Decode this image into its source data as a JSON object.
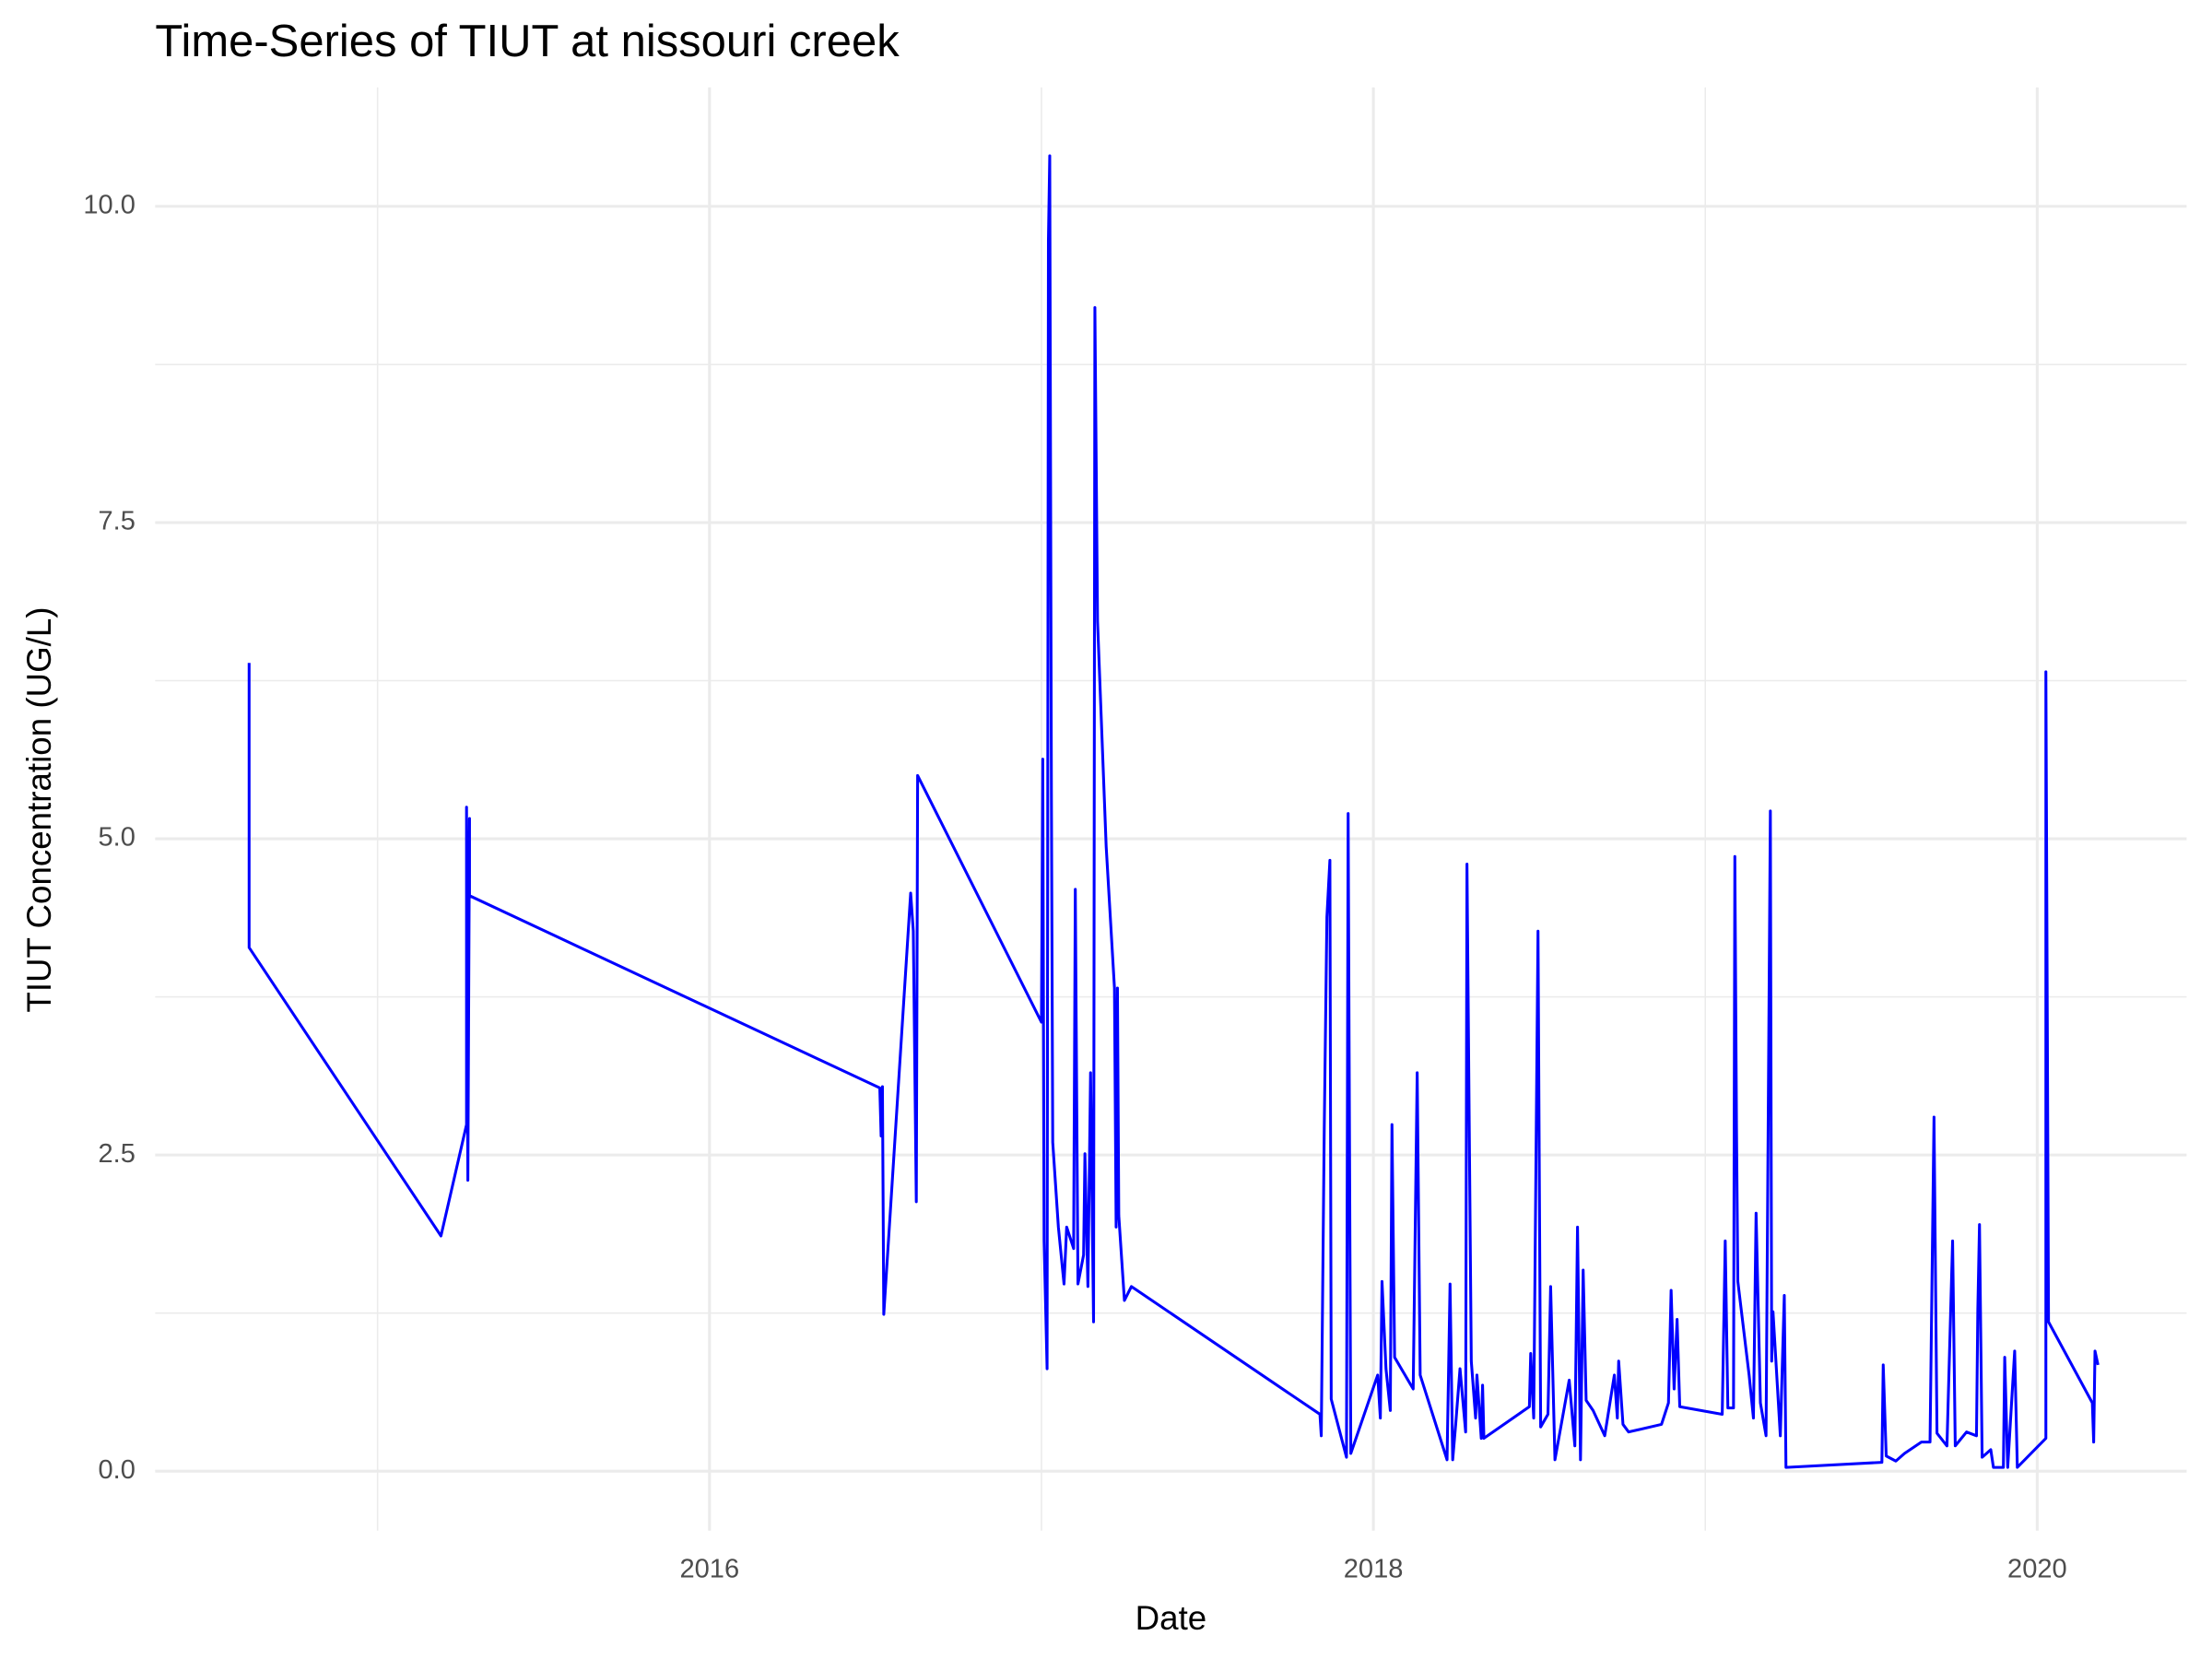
{
  "chart_data": {
    "type": "line",
    "title": "Time-Series of TIUT at nissouri creek",
    "x_label": "Date",
    "y_label": "TIUT Concentration (UG/L)",
    "color": "#0000ff",
    "grid": true,
    "xlim": [
      2014.33,
      2020.45
    ],
    "xticks": [
      2016,
      2018,
      2020
    ],
    "x_minor_ticks": [
      2015,
      2017,
      2019
    ],
    "ylim": [
      -0.47,
      10.94
    ],
    "yticks": [
      {
        "value": 0,
        "label": "0.0"
      },
      2.5,
      {
        "value": 5,
        "label": "5.0"
      },
      7.5,
      {
        "value": 10,
        "label": "10.0"
      }
    ],
    "y_minor_ticks": [
      1.25,
      3.75,
      6.25,
      8.75
    ],
    "x": [
      2014.613,
      2014.613,
      2015.191,
      2015.268,
      2015.268,
      2015.272,
      2015.277,
      2015.277,
      2016.513,
      2016.517,
      2016.521,
      2016.525,
      2016.606,
      2016.614,
      2016.623,
      2016.627,
      2017.0,
      2017.004,
      2017.008,
      2017.017,
      2017.021,
      2017.025,
      2017.03,
      2017.034,
      2017.051,
      2017.068,
      2017.076,
      2017.097,
      2017.102,
      2017.11,
      2017.127,
      2017.131,
      2017.14,
      2017.148,
      2017.157,
      2017.161,
      2017.169,
      2017.195,
      2017.22,
      2017.225,
      2017.229,
      2017.233,
      2017.25,
      2017.271,
      2017.839,
      2017.843,
      2017.852,
      2017.86,
      2017.869,
      2017.873,
      2017.919,
      2017.924,
      2017.932,
      2018.013,
      2018.021,
      2018.026,
      2018.038,
      2018.051,
      2018.056,
      2018.064,
      2018.12,
      2018.132,
      2018.141,
      2018.222,
      2018.231,
      2018.239,
      2018.248,
      2018.261,
      2018.278,
      2018.282,
      2018.295,
      2018.308,
      2018.312,
      2018.325,
      2018.329,
      2018.333,
      2018.47,
      2018.474,
      2018.483,
      2018.496,
      2018.504,
      2018.526,
      2018.534,
      2018.547,
      2018.59,
      2018.607,
      2018.615,
      2018.624,
      2018.632,
      2018.641,
      2018.662,
      2018.697,
      2018.726,
      2018.735,
      2018.739,
      2018.752,
      2018.769,
      2018.868,
      2018.889,
      2018.897,
      2018.906,
      2018.915,
      2018.923,
      2019.051,
      2019.06,
      2019.068,
      2019.085,
      2019.089,
      2019.094,
      2019.098,
      2019.132,
      2019.145,
      2019.153,
      2019.166,
      2019.183,
      2019.187,
      2019.196,
      2019.2,
      2019.204,
      2019.226,
      2019.238,
      2019.243,
      2019.532,
      2019.536,
      2019.545,
      2019.574,
      2019.6,
      2019.651,
      2019.677,
      2019.689,
      2019.698,
      2019.728,
      2019.745,
      2019.753,
      2019.787,
      2019.817,
      2019.821,
      2019.826,
      2019.834,
      2019.86,
      2019.868,
      2019.898,
      2019.902,
      2019.911,
      2019.932,
      2019.94,
      2020.026,
      2020.026,
      2020.034,
      2020.166,
      2020.17,
      2020.174,
      2020.183
    ],
    "values": [
      6.39,
      4.14,
      1.86,
      2.74,
      5.25,
      2.3,
      5.16,
      4.55,
      3.03,
      2.65,
      3.04,
      1.24,
      4.57,
      4.27,
      2.13,
      5.5,
      3.55,
      5.63,
      1.82,
      0.81,
      9.73,
      10.4,
      5.38,
      2.6,
      1.93,
      1.48,
      1.93,
      1.76,
      4.6,
      1.48,
      1.71,
      2.51,
      1.46,
      3.15,
      1.18,
      9.2,
      6.72,
      4.94,
      3.82,
      1.93,
      3.82,
      2.02,
      1.35,
      1.46,
      0.45,
      0.28,
      2.71,
      4.38,
      4.83,
      0.57,
      0.11,
      5.2,
      0.14,
      0.76,
      0.42,
      1.5,
      0.81,
      0.48,
      2.74,
      0.9,
      0.65,
      3.15,
      0.76,
      0.09,
      1.48,
      0.09,
      0.37,
      0.81,
      0.31,
      4.8,
      0.87,
      0.42,
      0.76,
      0.26,
      0.68,
      0.26,
      0.51,
      0.93,
      0.42,
      4.27,
      0.35,
      0.45,
      1.46,
      0.09,
      0.72,
      0.2,
      1.93,
      0.09,
      1.59,
      0.56,
      0.48,
      0.28,
      0.76,
      0.42,
      0.87,
      0.37,
      0.31,
      0.37,
      0.54,
      1.43,
      0.65,
      1.2,
      0.51,
      0.45,
      1.82,
      0.5,
      0.5,
      4.86,
      2.71,
      1.5,
      0.76,
      0.42,
      2.04,
      0.54,
      0.28,
      1.82,
      5.22,
      0.87,
      1.26,
      0.28,
      1.39,
      0.03,
      0.07,
      0.84,
      0.12,
      0.08,
      0.14,
      0.23,
      0.23,
      2.8,
      0.3,
      0.2,
      1.82,
      0.2,
      0.31,
      0.28,
      1.28,
      1.95,
      0.11,
      0.17,
      0.03,
      0.03,
      0.9,
      0.03,
      0.95,
      0.03,
      0.26,
      6.32,
      1.18,
      0.54,
      0.23,
      0.95,
      0.84
    ]
  }
}
